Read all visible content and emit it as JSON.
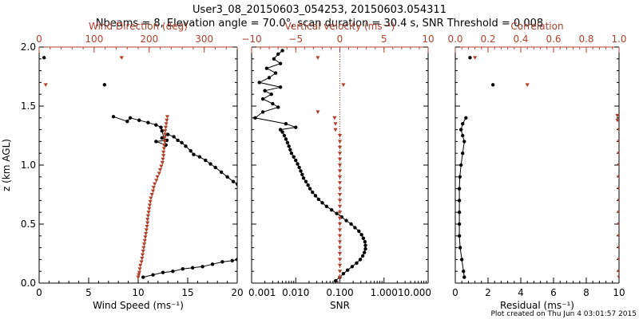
{
  "header": {
    "line1": "User3_08_20150603_054253, 20150603.054311",
    "line2": "Nbeams = 8, Elevation angle = 70.0°, scan duration = 30.4 s, SNR Threshold = 0.008"
  },
  "footer": "Plot created on Thu Jun  4 03:01:57 2015",
  "colors": {
    "axis": "#000000",
    "secondary": "#b1402a"
  },
  "chart_data": [
    {
      "type": "line",
      "id": "wind",
      "ylabel": "z (km AGL)",
      "ylim": [
        0,
        2
      ],
      "yticks": [
        0.0,
        0.5,
        1.0,
        1.5,
        2.0
      ],
      "yticklabels": [
        "0.0",
        "0.5",
        "1.0",
        "1.5",
        "2.0"
      ],
      "bottom_axis": {
        "label": "Wind Speed (ms⁻¹)",
        "range": [
          0,
          20
        ],
        "ticks": [
          0,
          5,
          10,
          15,
          20
        ],
        "ticklabels": [
          "0",
          "5",
          "10",
          "15",
          "20"
        ]
      },
      "top_axis": {
        "label": "Wind Direction (deg)",
        "range": [
          0,
          360
        ],
        "ticks": [
          0,
          100,
          200,
          300
        ],
        "ticklabels": [
          "0",
          "100",
          "200",
          "300"
        ]
      },
      "series": [
        {
          "axis": "bottom",
          "color": "#000000",
          "connected": true,
          "marker": "circle",
          "points": [
            [
              10.5,
              0.05
            ],
            [
              11.5,
              0.07
            ],
            [
              12.5,
              0.09
            ],
            [
              13.5,
              0.1
            ],
            [
              14.5,
              0.12
            ],
            [
              15.5,
              0.13
            ],
            [
              16.5,
              0.14
            ],
            [
              17.5,
              0.16
            ],
            [
              18.5,
              0.18
            ],
            [
              19.5,
              0.19
            ],
            [
              20.0,
              0.2
            ]
          ]
        },
        {
          "axis": "bottom",
          "color": "#000000",
          "connected": true,
          "marker": "circle",
          "points": [
            [
              20.0,
              0.84
            ],
            [
              19.6,
              0.86
            ],
            [
              19.0,
              0.9
            ],
            [
              18.4,
              0.94
            ],
            [
              17.8,
              0.98
            ],
            [
              17.3,
              1.01
            ],
            [
              16.8,
              1.04
            ],
            [
              16.2,
              1.07
            ],
            [
              15.6,
              1.09
            ],
            [
              15.3,
              1.12
            ],
            [
              14.8,
              1.16
            ],
            [
              14.4,
              1.19
            ],
            [
              14.0,
              1.21
            ],
            [
              13.6,
              1.24
            ],
            [
              13.0,
              1.26
            ],
            [
              12.4,
              1.23
            ],
            [
              12.9,
              1.21
            ],
            [
              11.8,
              1.2
            ],
            [
              12.8,
              1.17
            ],
            [
              12.4,
              1.29
            ],
            [
              12.3,
              1.32
            ],
            [
              11.8,
              1.34
            ],
            [
              11.0,
              1.36
            ],
            [
              10.1,
              1.38
            ],
            [
              9.2,
              1.4
            ],
            [
              8.9,
              1.37
            ],
            [
              7.5,
              1.41
            ]
          ]
        },
        {
          "axis": "bottom",
          "color": "#000000",
          "connected": false,
          "marker": "circle",
          "points": [
            [
              6.6,
              1.68
            ],
            [
              0.5,
              1.91
            ]
          ]
        },
        {
          "axis": "top",
          "color": "#b1402a",
          "connected": false,
          "marker": "triangle",
          "points": [
            [
              180,
              0.05
            ],
            [
              181,
              0.07
            ],
            [
              182,
              0.09
            ],
            [
              183,
              0.12
            ],
            [
              184,
              0.15
            ],
            [
              186,
              0.18
            ],
            [
              187,
              0.21
            ],
            [
              188,
              0.24
            ],
            [
              189,
              0.27
            ],
            [
              190,
              0.3
            ],
            [
              191,
              0.33
            ],
            [
              192,
              0.36
            ],
            [
              193,
              0.39
            ],
            [
              194,
              0.42
            ],
            [
              195,
              0.45
            ],
            [
              196,
              0.48
            ],
            [
              197,
              0.51
            ],
            [
              197,
              0.54
            ],
            [
              198,
              0.57
            ],
            [
              199,
              0.6
            ],
            [
              200,
              0.63
            ],
            [
              201,
              0.66
            ],
            [
              202,
              0.69
            ],
            [
              203,
              0.72
            ],
            [
              205,
              0.75
            ],
            [
              207,
              0.78
            ],
            [
              208,
              0.81
            ],
            [
              210,
              0.84
            ],
            [
              213,
              0.87
            ],
            [
              215,
              0.9
            ],
            [
              218,
              0.93
            ],
            [
              220,
              0.96
            ],
            [
              222,
              0.99
            ],
            [
              224,
              1.02
            ],
            [
              225,
              1.05
            ],
            [
              226,
              1.08
            ],
            [
              226,
              1.11
            ],
            [
              227,
              1.14
            ],
            [
              227,
              1.17
            ],
            [
              228,
              1.2
            ],
            [
              228,
              1.23
            ],
            [
              229,
              1.26
            ],
            [
              229,
              1.29
            ],
            [
              230,
              1.32
            ],
            [
              231,
              1.35
            ],
            [
              232,
              1.38
            ],
            [
              233,
              1.41
            ],
            [
              12,
              1.68
            ],
            [
              150,
              1.91
            ]
          ]
        }
      ]
    },
    {
      "type": "line",
      "id": "vertical-velocity-snr",
      "ylim": [
        0,
        2
      ],
      "bottom_axis": {
        "label": "SNR",
        "scale": "log",
        "range": [
          0.001,
          10
        ],
        "ticks": [
          0.001,
          0.01,
          0.1,
          1,
          10
        ],
        "ticklabels": [
          "0.001",
          "0.010",
          "0.100",
          "1.000",
          "10.000"
        ]
      },
      "top_axis": {
        "label": "Vertical velocity (ms⁻¹)",
        "range": [
          -10,
          10
        ],
        "ticks": [
          -10,
          -5,
          0,
          5,
          10
        ],
        "ticklabels": [
          "−10",
          "−5",
          "0",
          "5",
          "10"
        ]
      },
      "reference_line": {
        "axis": "top",
        "value": 0,
        "style": "dotted",
        "color": "#b1402a"
      },
      "series": [
        {
          "axis": "bottom",
          "color": "#000000",
          "connected": true,
          "marker": "circle",
          "points": [
            [
              0.08,
              0.02
            ],
            [
              0.1,
              0.05
            ],
            [
              0.12,
              0.08
            ],
            [
              0.15,
              0.11
            ],
            [
              0.19,
              0.14
            ],
            [
              0.24,
              0.17
            ],
            [
              0.29,
              0.2
            ],
            [
              0.33,
              0.23
            ],
            [
              0.36,
              0.26
            ],
            [
              0.38,
              0.29
            ],
            [
              0.38,
              0.32
            ],
            [
              0.37,
              0.35
            ],
            [
              0.34,
              0.38
            ],
            [
              0.31,
              0.41
            ],
            [
              0.27,
              0.44
            ],
            [
              0.22,
              0.47
            ],
            [
              0.18,
              0.5
            ],
            [
              0.14,
              0.53
            ],
            [
              0.11,
              0.56
            ],
            [
              0.085,
              0.59
            ],
            [
              0.065,
              0.62
            ],
            [
              0.05,
              0.65
            ],
            [
              0.04,
              0.68
            ],
            [
              0.033,
              0.71
            ],
            [
              0.028,
              0.74
            ],
            [
              0.024,
              0.77
            ],
            [
              0.021,
              0.8
            ],
            [
              0.019,
              0.83
            ],
            [
              0.017,
              0.86
            ],
            [
              0.015,
              0.89
            ],
            [
              0.014,
              0.92
            ],
            [
              0.013,
              0.95
            ],
            [
              0.012,
              0.98
            ],
            [
              0.011,
              1.01
            ],
            [
              0.01,
              1.04
            ],
            [
              0.009,
              1.07
            ],
            [
              0.008,
              1.1
            ],
            [
              0.0075,
              1.13
            ],
            [
              0.007,
              1.16
            ],
            [
              0.0065,
              1.19
            ],
            [
              0.006,
              1.22
            ],
            [
              0.0055,
              1.25
            ],
            [
              0.005,
              1.28
            ],
            [
              0.0045,
              1.3
            ],
            [
              0.01,
              1.32
            ],
            [
              0.006,
              1.35
            ],
            [
              0.0012,
              1.4
            ],
            [
              0.0018,
              1.45
            ],
            [
              0.004,
              1.49
            ],
            [
              0.003,
              1.52
            ],
            [
              0.0018,
              1.56
            ],
            [
              0.0028,
              1.6
            ],
            [
              0.002,
              1.63
            ],
            [
              0.0045,
              1.66
            ],
            [
              0.0015,
              1.7
            ],
            [
              0.0025,
              1.74
            ],
            [
              0.0035,
              1.78
            ],
            [
              0.0022,
              1.82
            ],
            [
              0.0045,
              1.86
            ],
            [
              0.0032,
              1.9
            ],
            [
              0.004,
              1.94
            ],
            [
              0.005,
              1.97
            ]
          ]
        },
        {
          "axis": "top",
          "color": "#b1402a",
          "connected": false,
          "marker": "triangle",
          "points": [
            [
              0,
              0.05
            ],
            [
              0,
              0.1
            ],
            [
              0,
              0.15
            ],
            [
              0,
              0.2
            ],
            [
              0,
              0.25
            ],
            [
              0,
              0.3
            ],
            [
              0,
              0.35
            ],
            [
              0,
              0.4
            ],
            [
              0,
              0.45
            ],
            [
              0,
              0.5
            ],
            [
              0,
              0.55
            ],
            [
              0,
              0.6
            ],
            [
              0,
              0.65
            ],
            [
              0,
              0.7
            ],
            [
              0,
              0.75
            ],
            [
              0,
              0.8
            ],
            [
              0,
              0.85
            ],
            [
              0,
              0.9
            ],
            [
              0,
              0.95
            ],
            [
              0,
              1.0
            ],
            [
              0,
              1.05
            ],
            [
              0,
              1.1
            ],
            [
              0,
              1.15
            ],
            [
              0,
              1.2
            ],
            [
              0,
              1.25
            ],
            [
              -0.5,
              1.3
            ],
            [
              -0.5,
              1.35
            ],
            [
              -0.6,
              1.4
            ],
            [
              -2.5,
              1.45
            ],
            [
              0.4,
              1.68
            ],
            [
              -2.5,
              1.91
            ]
          ]
        }
      ]
    },
    {
      "type": "scatter",
      "id": "correlation-residual",
      "ylim": [
        0,
        2
      ],
      "bottom_axis": {
        "label": "Residual (ms⁻¹)",
        "range": [
          0,
          10
        ],
        "ticks": [
          0,
          2,
          4,
          6,
          8,
          10
        ],
        "ticklabels": [
          "0",
          "2",
          "4",
          "6",
          "8",
          "10"
        ]
      },
      "top_axis": {
        "label": "Correlation",
        "range": [
          0,
          1
        ],
        "ticks": [
          0,
          0.2,
          0.4,
          0.6,
          0.8,
          1.0
        ],
        "ticklabels": [
          "0.0",
          "0.2",
          "0.4",
          "0.6",
          "0.8",
          "1.0"
        ]
      },
      "series": [
        {
          "axis": "bottom",
          "color": "#000000",
          "connected": true,
          "marker": "circle",
          "points": [
            [
              0.55,
              0.05
            ],
            [
              0.5,
              0.1
            ],
            [
              0.4,
              0.2
            ],
            [
              0.3,
              0.3
            ],
            [
              0.25,
              0.4
            ],
            [
              0.25,
              0.5
            ],
            [
              0.25,
              0.6
            ],
            [
              0.25,
              0.7
            ],
            [
              0.25,
              0.8
            ],
            [
              0.28,
              0.9
            ],
            [
              0.35,
              1.0
            ],
            [
              0.45,
              1.1
            ],
            [
              0.55,
              1.2
            ],
            [
              0.45,
              1.25
            ],
            [
              0.35,
              1.3
            ],
            [
              0.45,
              1.35
            ],
            [
              0.65,
              1.4
            ]
          ]
        },
        {
          "axis": "bottom",
          "color": "#000000",
          "connected": false,
          "marker": "circle",
          "points": [
            [
              2.3,
              1.68
            ],
            [
              0.9,
              1.91
            ]
          ]
        },
        {
          "axis": "top",
          "color": "#b1402a",
          "connected": false,
          "marker": "triangle",
          "points": [
            [
              1.0,
              0.05
            ],
            [
              1.0,
              0.1
            ],
            [
              1.0,
              0.2
            ],
            [
              1.0,
              0.3
            ],
            [
              1.0,
              0.4
            ],
            [
              1.0,
              0.5
            ],
            [
              1.0,
              0.6
            ],
            [
              1.0,
              0.7
            ],
            [
              1.0,
              0.8
            ],
            [
              1.0,
              0.9
            ],
            [
              1.0,
              1.0
            ],
            [
              1.0,
              1.1
            ],
            [
              1.0,
              1.2
            ],
            [
              1.0,
              1.3
            ],
            [
              0.99,
              1.38
            ],
            [
              0.99,
              1.42
            ],
            [
              0.44,
              1.68
            ],
            [
              0.12,
              1.91
            ]
          ]
        }
      ]
    }
  ]
}
